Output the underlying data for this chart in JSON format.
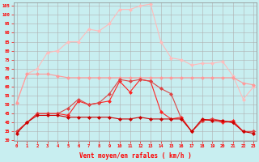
{
  "x": [
    0,
    1,
    2,
    3,
    4,
    5,
    6,
    7,
    8,
    9,
    10,
    11,
    12,
    13,
    14,
    15,
    16,
    17,
    18,
    19,
    20,
    21,
    22,
    23
  ],
  "line_avg": [
    34,
    40,
    44,
    44,
    44,
    43,
    43,
    43,
    43,
    43,
    42,
    42,
    43,
    42,
    42,
    42,
    42,
    35,
    42,
    41,
    41,
    40,
    35,
    34
  ],
  "line_flat1": [
    51,
    67,
    67,
    67,
    66,
    65,
    65,
    65,
    65,
    65,
    65,
    65,
    65,
    65,
    65,
    65,
    65,
    65,
    65,
    65,
    65,
    65,
    62,
    61
  ],
  "line_wind1": [
    35,
    40,
    45,
    45,
    45,
    44,
    52,
    50,
    51,
    52,
    63,
    57,
    64,
    63,
    46,
    42,
    43,
    35,
    41,
    42,
    40,
    41,
    35,
    35
  ],
  "line_wind2": [
    35,
    40,
    45,
    45,
    45,
    48,
    53,
    50,
    51,
    56,
    64,
    63,
    64,
    63,
    59,
    56,
    42,
    35,
    41,
    42,
    41,
    40,
    35,
    35
  ],
  "line_gust": [
    51,
    67,
    70,
    79,
    80,
    85,
    85,
    92,
    91,
    95,
    103,
    103,
    105,
    106,
    85,
    76,
    75,
    72,
    73,
    73,
    74,
    66,
    53,
    60
  ],
  "bg_color": "#c8eef0",
  "grid_color": "#b0b0b0",
  "color_avg": "#cc0000",
  "color_flat1": "#ff9999",
  "color_wind1": "#ff2222",
  "color_wind2": "#dd4444",
  "color_gust": "#ffbbbb",
  "xlabel": "Vent moyen/en rafales ( km/h )",
  "ylim": [
    30,
    107
  ],
  "yticks": [
    30,
    35,
    40,
    45,
    50,
    55,
    60,
    65,
    70,
    75,
    80,
    85,
    90,
    95,
    100,
    105
  ]
}
